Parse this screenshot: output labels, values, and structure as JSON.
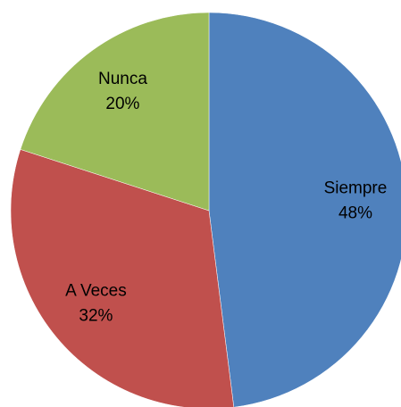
{
  "chart_data": {
    "type": "pie",
    "categories": [
      "Siempre",
      "A Veces",
      "Nunca"
    ],
    "values": [
      48,
      32,
      20
    ],
    "value_labels": [
      "48%",
      "32%",
      "20%"
    ],
    "colors": [
      "#4f81bd",
      "#c0504d",
      "#9bbb59"
    ]
  }
}
